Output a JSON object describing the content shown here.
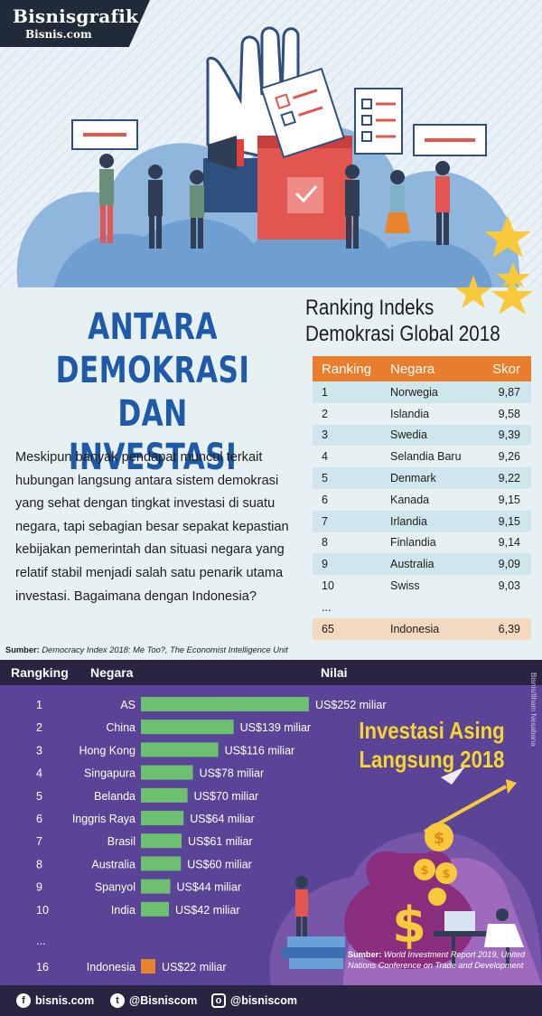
{
  "brand": {
    "name": "Bisnisgrafik",
    "sub": "Bisnis.com"
  },
  "main_title": [
    "ANTARA",
    "DEMOKRASI",
    "DAN INVESTASI"
  ],
  "intro_text": "Meskipun banyak pendapat muncul terkait hubungan langsung antara sistem demokrasi yang sehat dengan tingkat investasi di suatu negara, tapi sebagian besar sepakat kepastian kebijakan pemerintah dan situasi negara yang relatif stabil menjadi salah satu penarik utama investasi. Bagaimana dengan Indonesia?",
  "democracy": {
    "title": [
      "Ranking Indeks",
      "Demokrasi Global 2018"
    ],
    "headers": {
      "rank": "Ranking",
      "country": "Negara",
      "score": "Skor"
    },
    "rows": [
      {
        "rank": "1",
        "country": "Norwegia",
        "score": "9,87"
      },
      {
        "rank": "2",
        "country": "Islandia",
        "score": "9,58"
      },
      {
        "rank": "3",
        "country": "Swedia",
        "score": "9,39"
      },
      {
        "rank": "4",
        "country": "Selandia Baru",
        "score": "9,26"
      },
      {
        "rank": "5",
        "country": "Denmark",
        "score": "9,22"
      },
      {
        "rank": "6",
        "country": "Kanada",
        "score": "9,15"
      },
      {
        "rank": "7",
        "country": "Irlandia",
        "score": "9,15"
      },
      {
        "rank": "8",
        "country": "Finlandia",
        "score": "9,14"
      },
      {
        "rank": "9",
        "country": "Australia",
        "score": "9,09"
      },
      {
        "rank": "10",
        "country": "Swiss",
        "score": "9,03"
      },
      {
        "rank": "...",
        "country": "",
        "score": ""
      },
      {
        "rank": "65",
        "country": "Indonesia",
        "score": "6,39"
      }
    ],
    "source_label": "Sumber:",
    "source_text": "Democracy Index 2018: Me Too?, The Economist Intelligence Unit"
  },
  "fdi": {
    "title": [
      "Investasi Asing",
      "Langsung 2018"
    ],
    "col_rank": "Rangking",
    "col_country": "Negara",
    "col_value": "Nilai",
    "credit": "Bisnis/Ilham Nesabana",
    "source_label": "Sumber:",
    "source_text": "World Investment Report 2019, United Nations Conference on Trade and Development"
  },
  "chart_data": {
    "type": "bar",
    "title": "Investasi Asing Langsung 2018",
    "xlabel": "",
    "ylabel": "Nilai",
    "unit": "US$ miliar",
    "categories": [
      "AS",
      "China",
      "Hong Kong",
      "Singapura",
      "Belanda",
      "Inggris Raya",
      "Brasil",
      "Australia",
      "Spanyol",
      "India",
      "Indonesia"
    ],
    "ranks": [
      "1",
      "2",
      "3",
      "4",
      "5",
      "6",
      "7",
      "8",
      "9",
      "10",
      "16"
    ],
    "values": [
      252,
      139,
      116,
      78,
      70,
      64,
      61,
      60,
      44,
      42,
      22
    ],
    "value_labels": [
      "US$252 miliar",
      "US$139 miliar",
      "US$116 miliar",
      "US$78 miliar",
      "US$70 miliar",
      "US$64 miliar",
      "US$61 miliar",
      "US$60 miliar",
      "US$44 miliar",
      "US$42 miliar",
      "US$22 miliar"
    ],
    "ellipsis_rank": "...",
    "colors": {
      "bar": "#6cc070",
      "highlight": "#e8832e"
    }
  },
  "footer": {
    "facebook": "bisnis.com",
    "twitter": "@Bisniscom",
    "instagram": "@bisniscom"
  }
}
